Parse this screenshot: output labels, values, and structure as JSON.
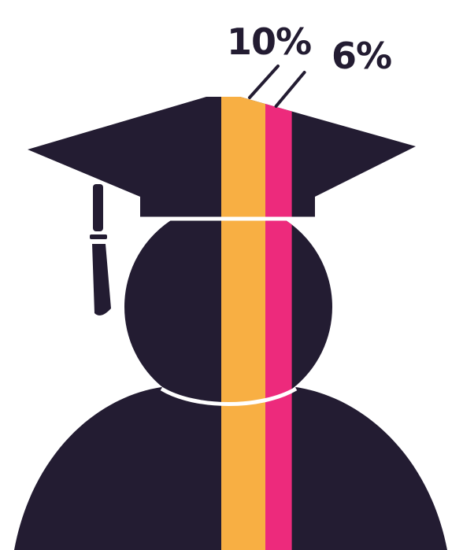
{
  "chart_data": {
    "type": "bar",
    "title": "",
    "xlabel": "",
    "ylabel": "",
    "series": [
      {
        "value": 10,
        "label": "10%",
        "color": "#f8af43"
      },
      {
        "value": 6,
        "label": "6%",
        "color": "#ed2a7c"
      }
    ],
    "unit": "%",
    "silhouette": "graduate-with-mortarboard",
    "colors": {
      "silhouette": "#231c32",
      "background": "#ffffff",
      "text": "#231c32"
    }
  }
}
